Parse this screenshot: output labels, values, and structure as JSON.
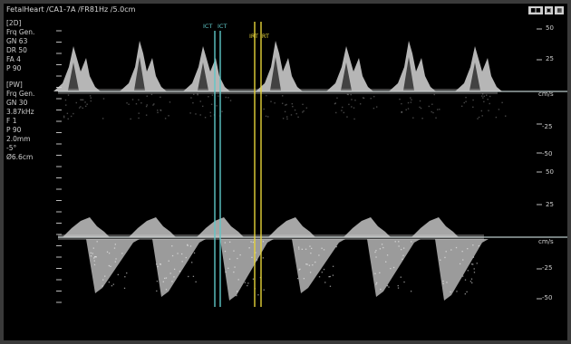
{
  "header": {
    "title": "FetalHeart /CA1-7A /FR81Hz /5.0cm"
  },
  "toolbar_icons": [
    "freeze-icon",
    "camera-icon",
    "save-icon"
  ],
  "params_2d": {
    "mode": "[2D]",
    "lines": [
      "Frq  Gen.",
      "GN   63",
      "DR   50",
      "FA   4",
      "P    90"
    ]
  },
  "params_pw": {
    "mode": "[PW]",
    "lines": [
      "Frq  Gen.",
      "GN   30",
      "3.87kHz",
      "F    1",
      "P    90",
      "2.0mm",
      "-5°",
      "Ø6.6cm"
    ]
  },
  "markers": {
    "ict1": "ICT",
    "ict2": "ICT",
    "irt1": "IRT",
    "irt2": "IRT",
    "ict_color": "#5fc7c7",
    "irt_color": "#e5d33a"
  },
  "top_scale": {
    "labels": [
      "50",
      "25",
      "cm/s",
      "-25",
      "-50"
    ]
  },
  "bottom_scale": {
    "labels": [
      "50",
      "25",
      "cm/s",
      "-25",
      "-50"
    ]
  }
}
